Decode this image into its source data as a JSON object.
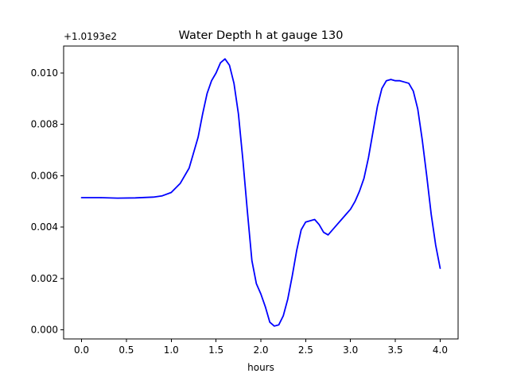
{
  "chart_data": {
    "type": "line",
    "title": "Water Depth h at gauge 130",
    "xlabel": "hours",
    "ylabel": "",
    "y_offset_label": "+1.0193e2",
    "xlim": [
      -0.2,
      4.2
    ],
    "ylim": [
      -0.00035,
      0.01105
    ],
    "x_ticks": [
      0.0,
      0.5,
      1.0,
      1.5,
      2.0,
      2.5,
      3.0,
      3.5,
      4.0
    ],
    "x_tick_labels": [
      "0.0",
      "0.5",
      "1.0",
      "1.5",
      "2.0",
      "2.5",
      "3.0",
      "3.5",
      "4.0"
    ],
    "y_ticks": [
      0.0,
      0.002,
      0.004,
      0.006,
      0.008,
      0.01
    ],
    "y_tick_labels": [
      "0.000",
      "0.002",
      "0.004",
      "0.006",
      "0.008",
      "0.010"
    ],
    "grid": false,
    "series": [
      {
        "color": "#0000ff",
        "x": [
          0.0,
          0.2,
          0.4,
          0.6,
          0.8,
          0.9,
          1.0,
          1.1,
          1.2,
          1.3,
          1.35,
          1.4,
          1.45,
          1.5,
          1.55,
          1.6,
          1.65,
          1.7,
          1.75,
          1.8,
          1.85,
          1.9,
          1.95,
          2.0,
          2.05,
          2.1,
          2.15,
          2.2,
          2.25,
          2.3,
          2.35,
          2.4,
          2.45,
          2.5,
          2.55,
          2.6,
          2.65,
          2.7,
          2.75,
          2.8,
          2.85,
          2.9,
          2.95,
          3.0,
          3.05,
          3.1,
          3.15,
          3.2,
          3.25,
          3.3,
          3.35,
          3.4,
          3.45,
          3.5,
          3.55,
          3.6,
          3.65,
          3.7,
          3.75,
          3.8,
          3.85,
          3.9,
          3.95,
          4.0
        ],
        "y": [
          0.00515,
          0.00515,
          0.00513,
          0.00514,
          0.00517,
          0.00522,
          0.00535,
          0.0057,
          0.0063,
          0.0075,
          0.0084,
          0.0092,
          0.0097,
          0.01,
          0.0104,
          0.01055,
          0.0103,
          0.0096,
          0.0084,
          0.0066,
          0.0046,
          0.0027,
          0.0018,
          0.0014,
          0.0009,
          0.0003,
          0.00015,
          0.0002,
          0.00055,
          0.0012,
          0.0021,
          0.0031,
          0.0039,
          0.0042,
          0.00425,
          0.0043,
          0.0041,
          0.0038,
          0.0037,
          0.0039,
          0.0041,
          0.0043,
          0.0045,
          0.0047,
          0.005,
          0.0054,
          0.0059,
          0.0067,
          0.0077,
          0.0087,
          0.0094,
          0.0097,
          0.00975,
          0.0097,
          0.0097,
          0.00965,
          0.0096,
          0.0093,
          0.0086,
          0.0074,
          0.006,
          0.0045,
          0.0033,
          0.0024
        ]
      }
    ]
  }
}
